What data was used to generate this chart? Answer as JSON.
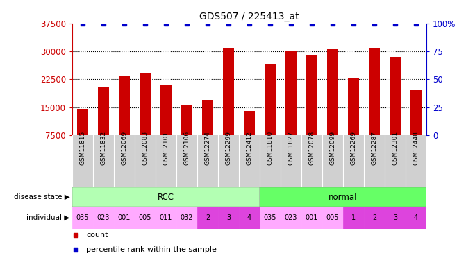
{
  "title": "GDS507 / 225413_at",
  "samples": [
    "GSM11815",
    "GSM11832",
    "GSM12069",
    "GSM12083",
    "GSM12101",
    "GSM12106",
    "GSM12274",
    "GSM12299",
    "GSM12412",
    "GSM11810",
    "GSM11827",
    "GSM12078",
    "GSM12099",
    "GSM12269",
    "GSM12287",
    "GSM12301",
    "GSM12448"
  ],
  "counts": [
    14500,
    20500,
    23500,
    24000,
    21000,
    15700,
    17000,
    31000,
    14000,
    26500,
    30200,
    29000,
    30500,
    23000,
    31000,
    28500,
    19500
  ],
  "percentile": [
    100,
    100,
    100,
    100,
    100,
    100,
    100,
    100,
    100,
    100,
    100,
    100,
    100,
    100,
    100,
    100,
    100
  ],
  "disease_state": [
    "RCC",
    "RCC",
    "RCC",
    "RCC",
    "RCC",
    "RCC",
    "RCC",
    "RCC",
    "RCC",
    "normal",
    "normal",
    "normal",
    "normal",
    "normal",
    "normal",
    "normal",
    "normal"
  ],
  "individual": [
    "035",
    "023",
    "001",
    "005",
    "011",
    "032",
    "2",
    "3",
    "4",
    "035",
    "023",
    "001",
    "005",
    "1",
    "2",
    "3",
    "4"
  ],
  "rcc_color": "#b3ffb3",
  "normal_color": "#66ff66",
  "individual_colors": [
    "#ffaaff",
    "#ffaaff",
    "#ffaaff",
    "#ffaaff",
    "#ffaaff",
    "#ffaaff",
    "#dd44dd",
    "#dd44dd",
    "#dd44dd",
    "#ffaaff",
    "#ffaaff",
    "#ffaaff",
    "#ffaaff",
    "#dd44dd",
    "#dd44dd",
    "#dd44dd",
    "#dd44dd"
  ],
  "bar_color": "#cc0000",
  "dot_color": "#0000cc",
  "ylim_left": [
    7500,
    37500
  ],
  "yticks_left": [
    7500,
    15000,
    22500,
    30000,
    37500
  ],
  "ylim_right": [
    0,
    100
  ],
  "yticks_right": [
    0,
    25,
    50,
    75,
    100
  ],
  "left_axis_color": "#cc0000",
  "right_axis_color": "#0000cc",
  "bg_color": "#ffffff"
}
